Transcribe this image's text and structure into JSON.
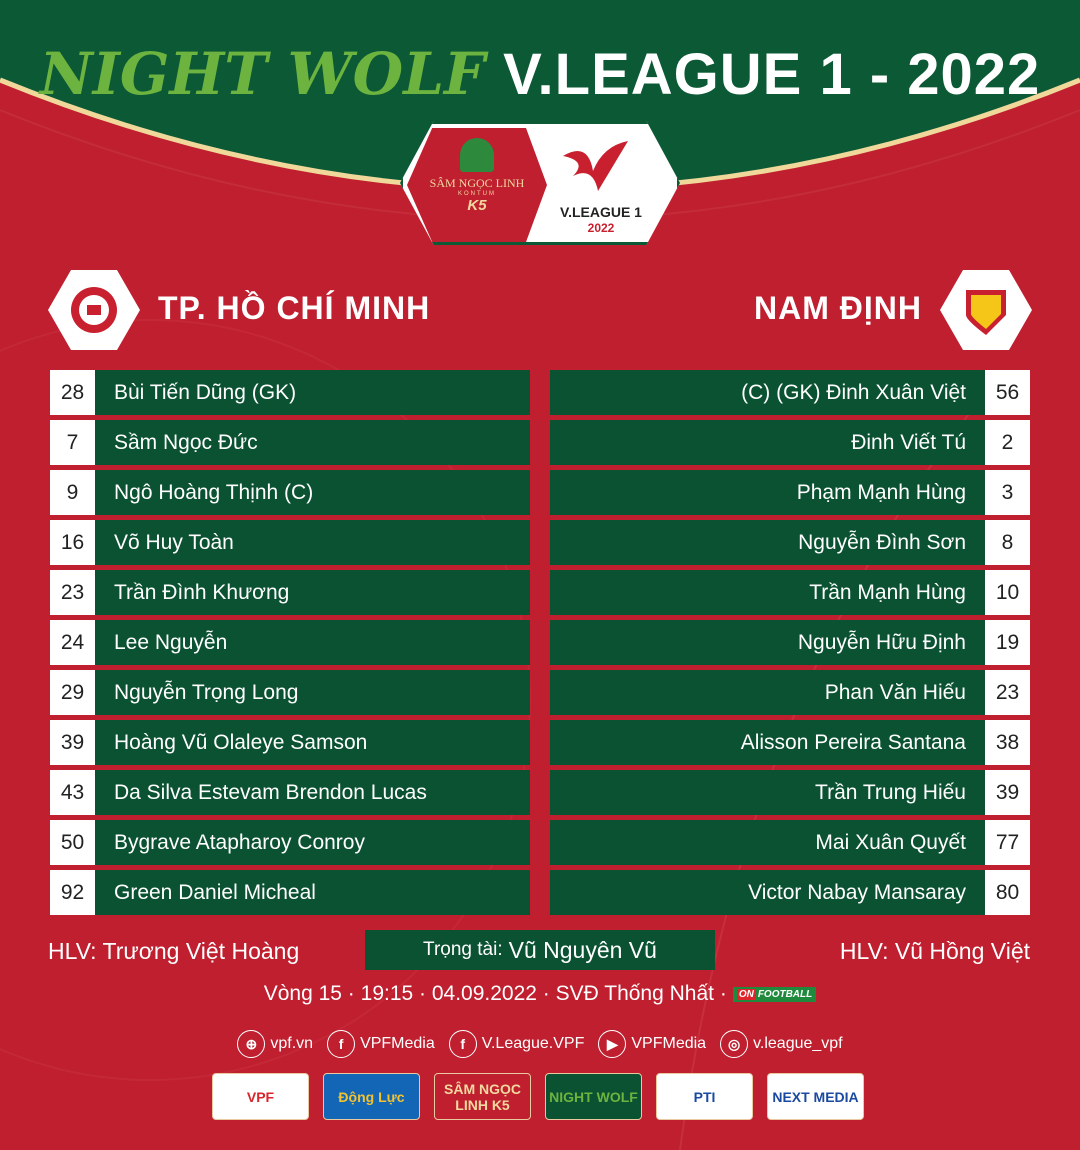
{
  "header": {
    "title_brand": "NIGHT WOLF",
    "title_main": "V.LEAGUE 1 - 2022"
  },
  "league_badge": {
    "sponsor": "SÂM NGỌC LINH",
    "sponsor_sub": "KONTUM",
    "sponsor_mark": "K5",
    "league": "V.LEAGUE 1",
    "year": "2022"
  },
  "colors": {
    "red": "#bf1f2f",
    "green": "#0b5232",
    "brand_green": "#6cb33f"
  },
  "home": {
    "name": "TP. HỒ CHÍ MINH",
    "coach": "HLV: Trương Việt Hoàng",
    "players": [
      {
        "num": "28",
        "name": "Bùi Tiến Dũng (GK)"
      },
      {
        "num": "7",
        "name": "Sầm Ngọc Đức"
      },
      {
        "num": "9",
        "name": "Ngô Hoàng Thịnh (C)"
      },
      {
        "num": "16",
        "name": "Võ Huy Toàn"
      },
      {
        "num": "23",
        "name": "Trần Đình Khương"
      },
      {
        "num": "24",
        "name": "Lee Nguyễn"
      },
      {
        "num": "29",
        "name": "Nguyễn Trọng Long"
      },
      {
        "num": "39",
        "name": "Hoàng Vũ Olaleye Samson"
      },
      {
        "num": "43",
        "name": "Da Silva Estevam Brendon Lucas"
      },
      {
        "num": "50",
        "name": "Bygrave Atapharoy Conroy"
      },
      {
        "num": "92",
        "name": "Green Daniel Micheal"
      }
    ]
  },
  "away": {
    "name": "NAM ĐỊNH",
    "coach": "HLV: Vũ Hồng Việt",
    "players": [
      {
        "num": "56",
        "name": "(C) (GK)  Đinh Xuân Việt"
      },
      {
        "num": "2",
        "name": "Đinh Viết Tú"
      },
      {
        "num": "3",
        "name": "Phạm Mạnh Hùng"
      },
      {
        "num": "8",
        "name": "Nguyễn Đình Sơn"
      },
      {
        "num": "10",
        "name": "Trần Mạnh Hùng"
      },
      {
        "num": "19",
        "name": "Nguyễn Hữu Định"
      },
      {
        "num": "23",
        "name": "Phan Văn Hiếu"
      },
      {
        "num": "38",
        "name": "Alisson Pereira Santana"
      },
      {
        "num": "39",
        "name": "Trần Trung Hiếu"
      },
      {
        "num": "77",
        "name": "Mai Xuân Quyết"
      },
      {
        "num": "80",
        "name": "Victor Nabay Mansaray"
      }
    ]
  },
  "referee": {
    "label": "Trọng tài:",
    "name": "Vũ Nguyên Vũ"
  },
  "match_info": "Vòng 15 · 19:15 · 04.09.2022 · SVĐ Thống Nhất ·",
  "broadcaster": {
    "on": "ON",
    "name": "FOOTBALL"
  },
  "socials": [
    {
      "icon": "globe-icon",
      "glyph": "⊕",
      "label": "vpf.vn"
    },
    {
      "icon": "facebook-icon",
      "glyph": "f",
      "label": "VPFMedia"
    },
    {
      "icon": "facebook-icon",
      "glyph": "f",
      "label": "V.League.VPF"
    },
    {
      "icon": "youtube-icon",
      "glyph": "▶",
      "label": "VPFMedia"
    },
    {
      "icon": "instagram-icon",
      "glyph": "◎",
      "label": "v.league_vpf"
    }
  ],
  "sponsors": [
    {
      "label": "VPF",
      "bg": "#ffffff",
      "fg": "#d7262e"
    },
    {
      "label": "Động Lực",
      "bg": "#1366b5",
      "fg": "#f2c230"
    },
    {
      "label": "SÂM NGỌC LINH K5",
      "bg": "#bf1f2f",
      "fg": "#f2d9a0"
    },
    {
      "label": "NIGHT WOLF",
      "bg": "#0b5232",
      "fg": "#6cb33f"
    },
    {
      "label": "PTI",
      "bg": "#ffffff",
      "fg": "#1a4aa0"
    },
    {
      "label": "NEXT MEDIA",
      "bg": "#ffffff",
      "fg": "#1a4aa0"
    }
  ]
}
